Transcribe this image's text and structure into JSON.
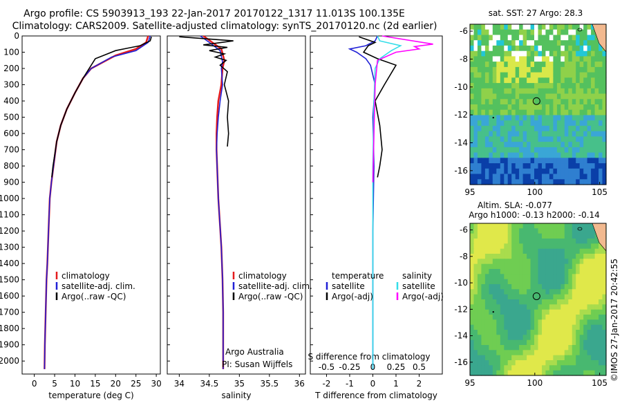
{
  "header": {
    "line1": "Argo profile: CS 5903913_193 22-Jan-2017 20170122_1317 11.013S 100.135E",
    "line2": "Climatology: CARS2009. Satellite-adjusted climatology: synTS_20170120.nc (2d earlier)"
  },
  "colors": {
    "climatology": "#e41a1c",
    "satellite": "#1f1fd6",
    "argo": "#000000",
    "sat_salinity": "#33dde8",
    "argo_adj_salinity": "#ff00ff"
  },
  "sidebar_stamp": "©IMOS 27-Jan-2017 20:42:55",
  "chart_data": [
    {
      "type": "line",
      "id": "temperature",
      "xlabel": "temperature (deg C)",
      "ylabel": "",
      "xlim": [
        -3,
        31
      ],
      "ylim": [
        2080,
        0
      ],
      "xticks": [
        "0",
        "5",
        "10",
        "15",
        "20",
        "25",
        "30"
      ],
      "yticks": [
        "0",
        "100",
        "200",
        "300",
        "400",
        "500",
        "600",
        "700",
        "800",
        "900",
        "1000",
        "1100",
        "1200",
        "1300",
        "1400",
        "1500",
        "1600",
        "1700",
        "1800",
        "1900",
        "2000"
      ],
      "legend": [
        "climatology",
        "satellite-adj. clim.",
        "Argo(..raw -QC)"
      ],
      "series": [
        {
          "name": "climatology",
          "color": "#e41a1c",
          "x": [
            28,
            27.5,
            25,
            20,
            14,
            12,
            10,
            8,
            6.5,
            5.5,
            4.2,
            3.8,
            3.5,
            3.2,
            3.0,
            2.9,
            2.7,
            2.6,
            2.5
          ],
          "y": [
            0,
            40,
            80,
            120,
            200,
            260,
            350,
            450,
            550,
            650,
            900,
            1000,
            1200,
            1400,
            1500,
            1600,
            1800,
            1900,
            2050
          ]
        },
        {
          "name": "satellite-adj. clim.",
          "color": "#1f1fd6",
          "x": [
            28.5,
            28,
            25,
            19,
            14,
            12,
            10,
            8,
            6.5,
            5.5,
            4.2,
            3.8,
            3.5,
            3.2,
            3.0,
            2.9,
            2.7,
            2.6,
            2.5
          ],
          "y": [
            0,
            40,
            90,
            130,
            200,
            260,
            350,
            450,
            550,
            650,
            900,
            1000,
            1200,
            1400,
            1500,
            1600,
            1800,
            1900,
            2050
          ]
        },
        {
          "name": "Argo(..raw -QC)",
          "color": "#000000",
          "x": [
            28.8,
            28.5,
            26,
            23,
            20,
            17,
            15,
            14,
            12,
            10,
            8,
            6.5,
            5.5,
            4.6,
            4.3
          ],
          "y": [
            5,
            30,
            60,
            75,
            90,
            120,
            140,
            180,
            260,
            350,
            450,
            550,
            650,
            800,
            870
          ]
        }
      ]
    },
    {
      "type": "line",
      "id": "salinity",
      "xlabel": "salinity",
      "xlim": [
        33.8,
        36.1
      ],
      "ylim": [
        2080,
        0
      ],
      "xticks": [
        "34",
        "34.5",
        "35",
        "35.5",
        "36"
      ],
      "legend": [
        "climatology",
        "satellite-adj. clim.",
        "Argo(..raw -QC)"
      ],
      "annotation": [
        "Argo Australia",
        "PI: Susan Wijffels"
      ],
      "series": [
        {
          "name": "climatology",
          "color": "#e41a1c",
          "x": [
            34.4,
            34.55,
            34.7,
            34.75,
            34.72,
            34.7,
            34.65,
            34.63,
            34.62,
            34.62,
            34.65,
            34.7,
            34.72,
            34.73,
            34.73,
            34.73
          ],
          "y": [
            0,
            40,
            80,
            150,
            200,
            300,
            400,
            500,
            600,
            700,
            1000,
            1300,
            1500,
            1700,
            1900,
            2050
          ]
        },
        {
          "name": "satellite-adj. clim.",
          "color": "#1f1fd6",
          "x": [
            34.35,
            34.5,
            34.68,
            34.72,
            34.7,
            34.72,
            34.68,
            34.65,
            34.63,
            34.62,
            34.65,
            34.7,
            34.72,
            34.73,
            34.73,
            34.73
          ],
          "y": [
            0,
            40,
            90,
            160,
            200,
            300,
            400,
            500,
            600,
            700,
            1000,
            1300,
            1500,
            1700,
            1900,
            2050
          ]
        },
        {
          "name": "Argo(..raw -QC)",
          "color": "#000000",
          "x": [
            34.0,
            34.9,
            34.4,
            34.8,
            34.5,
            34.75,
            34.6,
            34.78,
            34.68,
            34.8,
            34.75,
            34.82,
            34.8,
            34.82,
            34.8
          ],
          "y": [
            5,
            30,
            55,
            70,
            90,
            110,
            130,
            150,
            180,
            220,
            300,
            400,
            500,
            600,
            680
          ]
        }
      ]
    },
    {
      "type": "line",
      "id": "difference",
      "xlabel": "T difference from climatology",
      "xlabel_top": "S difference from climatology",
      "xlim": [
        -2.7,
        3.0
      ],
      "ylim": [
        2080,
        0
      ],
      "xticks": [
        "-2",
        "-1",
        "0",
        "1",
        "2"
      ],
      "xticks_s": [
        "-0.5",
        "-0.25",
        "0",
        "0.25",
        "0.5"
      ],
      "legend": [
        {
          "head": "temperature",
          "items": [
            "satellite",
            "Argo(-adj)"
          ]
        },
        {
          "head": "salinity",
          "items": [
            "satellite",
            "Argo(-adj)"
          ]
        }
      ],
      "series": [
        {
          "name": "temperature satellite",
          "color": "#1f1fd6",
          "x": [
            0.2,
            0.1,
            -0.3,
            -1.0,
            -0.7,
            -0.3,
            -0.1,
            0.1,
            0.0,
            0.05,
            0.0,
            0.0
          ],
          "y": [
            0,
            30,
            60,
            80,
            100,
            140,
            180,
            300,
            500,
            800,
            1200,
            2050
          ]
        },
        {
          "name": "temperature Argo(-adj)",
          "color": "#000000",
          "x": [
            -0.6,
            0.1,
            -0.2,
            -0.4,
            0.2,
            1.0,
            0.5,
            0.1,
            0.3,
            0.4,
            0.3,
            0.2
          ],
          "y": [
            5,
            40,
            60,
            100,
            140,
            180,
            300,
            400,
            550,
            700,
            800,
            870
          ]
        },
        {
          "name": "salinity satellite",
          "color": "#33dde8",
          "x": [
            0.2,
            0.3,
            1.2,
            0.8,
            0.3,
            0.1,
            0.05,
            0.0,
            0.0
          ],
          "y": [
            0,
            30,
            60,
            90,
            140,
            200,
            400,
            800,
            2050
          ]
        },
        {
          "name": "salinity Argo(-adj)",
          "color": "#ff00ff",
          "x": [
            0.4,
            2.6,
            1.8,
            2.0,
            1.0,
            0.2,
            0.1,
            0.05,
            0.0
          ],
          "y": [
            0,
            50,
            65,
            80,
            100,
            150,
            300,
            600,
            900
          ]
        }
      ]
    },
    {
      "type": "heatmap",
      "id": "sst-map",
      "title": "sat. SST: 27 Argo: 28.3",
      "xlim": [
        95,
        105.5
      ],
      "ylim": [
        -17,
        -5.5
      ],
      "xticks": [
        "95",
        "100",
        "105"
      ],
      "yticks": [
        "-6",
        "-8",
        "-10",
        "-12",
        "-14",
        "-16"
      ],
      "marker": {
        "lon": 100.135,
        "lat": -11.013
      }
    },
    {
      "type": "heatmap",
      "id": "sla-map",
      "title": "Altim. SLA: -0.077",
      "subtitle": "Argo h1000: -0.13 h2000: -0.14",
      "xlim": [
        95,
        105.5
      ],
      "ylim": [
        -17,
        -5.5
      ],
      "xticks": [
        "95",
        "100",
        "105"
      ],
      "yticks": [
        "-6",
        "-8",
        "-10",
        "-12",
        "-14",
        "-16"
      ],
      "marker": {
        "lon": 100.135,
        "lat": -11.013
      }
    }
  ]
}
